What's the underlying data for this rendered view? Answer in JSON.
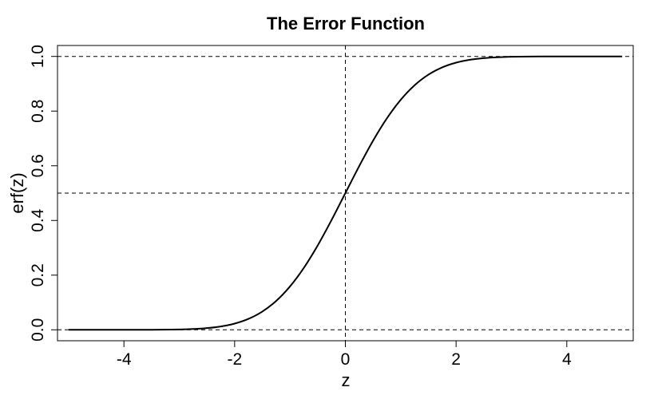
{
  "chart_data": {
    "type": "line",
    "title": "The Error Function",
    "xlabel": "z",
    "ylabel": "erf(z)",
    "xlim": [
      -5.2,
      5.2
    ],
    "ylim": [
      -0.04,
      1.04
    ],
    "x_ticks": [
      -4,
      -2,
      0,
      2,
      4
    ],
    "x_tick_labels": [
      "-4",
      "-2",
      "0",
      "2",
      "4"
    ],
    "y_ticks": [
      0.0,
      0.2,
      0.4,
      0.6,
      0.8,
      1.0
    ],
    "y_tick_labels": [
      "0.0",
      "0.2",
      "0.4",
      "0.6",
      "0.8",
      "1.0"
    ],
    "grid": false,
    "reference_lines": {
      "horizontal": [
        0,
        0.5,
        1
      ],
      "vertical": [
        0
      ],
      "style": "dashed"
    },
    "series": [
      {
        "color": "#000000",
        "x": [
          -5,
          -4.5,
          -4,
          -3.5,
          -3,
          -2.75,
          -2.5,
          -2.25,
          -2,
          -1.75,
          -1.5,
          -1.25,
          -1,
          -0.75,
          -0.5,
          -0.25,
          0,
          0.25,
          0.5,
          0.75,
          1,
          1.25,
          1.5,
          1.75,
          2,
          2.25,
          2.5,
          2.75,
          3,
          3.5,
          4,
          4.5,
          5
        ],
        "y": [
          0.0,
          0.0,
          0.0,
          0.0002,
          0.0013,
          0.003,
          0.0062,
          0.0122,
          0.0228,
          0.0401,
          0.0668,
          0.1056,
          0.1587,
          0.2266,
          0.3085,
          0.4013,
          0.5,
          0.5987,
          0.6915,
          0.7734,
          0.8413,
          0.8944,
          0.9332,
          0.9599,
          0.9772,
          0.9878,
          0.9938,
          0.997,
          0.9987,
          0.9998,
          1.0,
          1.0,
          1.0
        ]
      }
    ]
  }
}
